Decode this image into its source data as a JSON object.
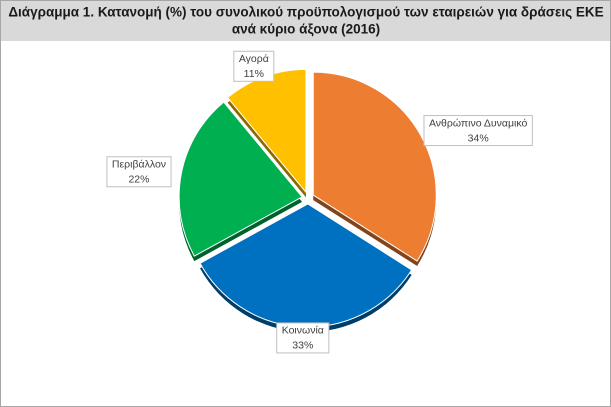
{
  "chart_data": {
    "type": "pie",
    "title": [
      "Διάγραμμα 1. Κατανομή (%) του συνολικού προϋπολογισμού των εταιρειών για δράσεις ΕΚΕ",
      "ανά κύριο άξονα (2016)"
    ],
    "categories": [
      "Ανθρώπινο Δυναμικό",
      "Κοινωνία",
      "Περιβάλλον",
      "Αγορά"
    ],
    "values": [
      34,
      33,
      22,
      11
    ],
    "value_labels": [
      "34%",
      "33%",
      "22%",
      "11%"
    ],
    "colors": [
      "#ed7d31",
      "#0070c0",
      "#00b050",
      "#ffc000"
    ]
  }
}
